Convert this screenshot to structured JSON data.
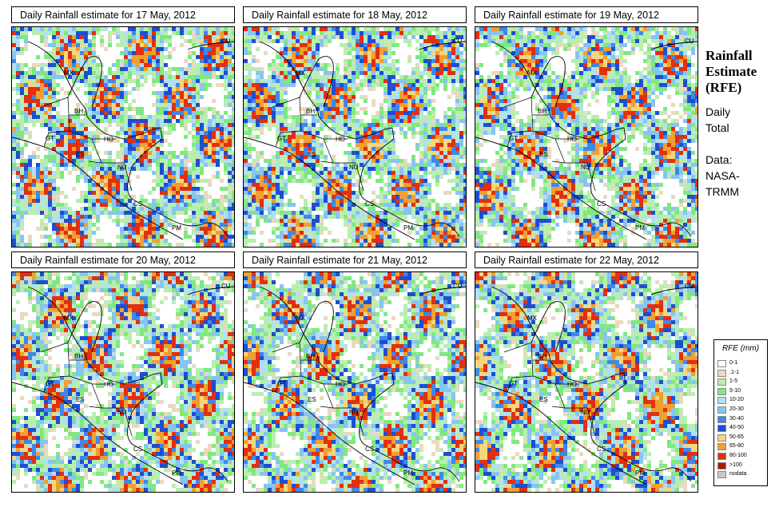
{
  "panels": [
    {
      "title": "Daily Rainfall estimate for  17 May, 2012",
      "seed": 17
    },
    {
      "title": "Daily Rainfall estimate for  18 May, 2012",
      "seed": 18
    },
    {
      "title": "Daily Rainfall estimate for  19 May, 2012",
      "seed": 19
    },
    {
      "title": "Daily Rainfall estimate for  20 May, 2012",
      "seed": 20
    },
    {
      "title": "Daily Rainfall estimate for  21 May, 2012",
      "seed": 21
    },
    {
      "title": "Daily Rainfall estimate for  22 May, 2012",
      "seed": 22
    }
  ],
  "country_labels": [
    "MX",
    "CU",
    "BH",
    "GT",
    "HO",
    "ES",
    "NU",
    "CS",
    "PM"
  ],
  "side": {
    "title_line1": "Rainfall",
    "title_line2": "Estimate",
    "title_line3": "(RFE)",
    "daily": "Daily",
    "total": "Total",
    "data_label": "Data:",
    "source1": "NASA-",
    "source2": "TRMM"
  },
  "legend": {
    "title": "RFE (mm)",
    "classes": [
      {
        "label": "0-1",
        "color": "#ffffff"
      },
      {
        "label": ".1-1",
        "color": "#e8d9c0"
      },
      {
        "label": "1-5",
        "color": "#b9eeb0"
      },
      {
        "label": "5-10",
        "color": "#80e880"
      },
      {
        "label": "10-20",
        "color": "#b2e0f0"
      },
      {
        "label": "20-30",
        "color": "#88c4f0"
      },
      {
        "label": "30-40",
        "color": "#3f88e8"
      },
      {
        "label": "40-50",
        "color": "#1e4ed0"
      },
      {
        "label": "50-65",
        "color": "#f2d680"
      },
      {
        "label": "65-80",
        "color": "#f0a030"
      },
      {
        "label": "80-100",
        "color": "#e03010"
      },
      {
        "label": ">100",
        "color": "#b01808"
      },
      {
        "label": "nodata",
        "color": "#c8c8c8"
      }
    ]
  }
}
